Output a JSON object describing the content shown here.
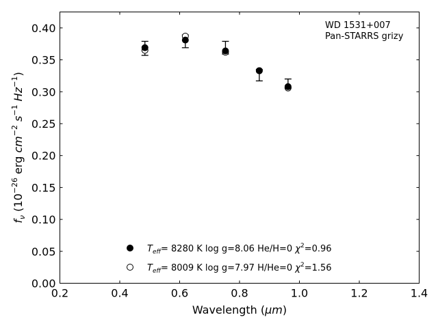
{
  "chart_data": {
    "type": "scatter",
    "xlabel_main": "Wavelength (",
    "xlabel_unit": "μm",
    "xlabel_close": ")",
    "ylabel": {
      "f": "f",
      "nu": "ν",
      "open": " (10",
      "exp1": "−26",
      "erg": " erg ",
      "cm": "cm",
      "exp2": "−2",
      "s": " s",
      "exp3": "−1",
      "hz": " Hz",
      "exp4": "−1",
      "close": ")"
    },
    "xlim": [
      0.2,
      1.4
    ],
    "ylim": [
      0.0,
      0.425
    ],
    "xticks": [
      0.2,
      0.4,
      0.6,
      0.8,
      1.0,
      1.2,
      1.4
    ],
    "xtick_labels": [
      "0.2",
      "0.4",
      "0.6",
      "0.8",
      "1.0",
      "1.2",
      "1.4"
    ],
    "yticks": [
      0.0,
      0.05,
      0.1,
      0.15,
      0.2,
      0.25,
      0.3,
      0.35,
      0.4
    ],
    "ytick_labels": [
      "0.00",
      "0.05",
      "0.10",
      "0.15",
      "0.20",
      "0.25",
      "0.30",
      "0.35",
      "0.40"
    ],
    "annotation": [
      "WD 1531+007",
      "Pan-STARRS grizy"
    ],
    "observed": {
      "x": [
        0.484,
        0.619,
        0.753,
        0.866,
        0.962
      ],
      "y": [
        0.368,
        0.379,
        0.369,
        0.326,
        0.313
      ],
      "err": [
        0.011,
        0.01,
        0.01,
        0.009,
        0.007
      ]
    },
    "series": [
      {
        "marker": "filled",
        "values": [
          0.369,
          0.381,
          0.364,
          0.333,
          0.308
        ],
        "legend": {
          "t": "T",
          "sub": "eff",
          "params": "=  8280 K  log g=8.06  He/H=0  ",
          "chi": "χ",
          "sup": "2",
          "val": "=0.96"
        }
      },
      {
        "marker": "open",
        "values": [
          0.365,
          0.387,
          0.362,
          0.333,
          0.306
        ],
        "legend": {
          "t": "T",
          "sub": "eff",
          "params": "=  8009 K  log g=7.97  H/He=0  ",
          "chi": "χ",
          "sup": "2",
          "val": "=1.56"
        }
      }
    ],
    "legend_position": "lower-center"
  }
}
